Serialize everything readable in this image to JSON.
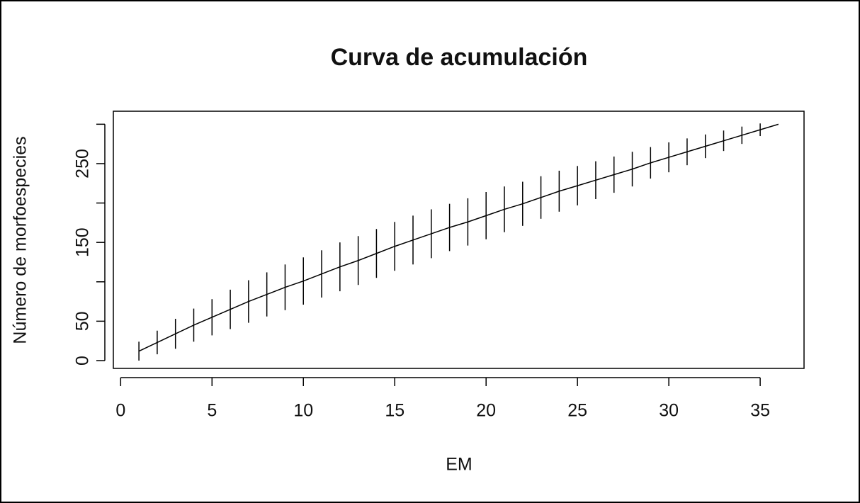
{
  "chart_data": {
    "type": "line",
    "title": "Curva de acumulación",
    "xlabel": "EM",
    "ylabel": "Número de morfoespecies",
    "x": [
      1,
      2,
      3,
      4,
      5,
      6,
      7,
      8,
      9,
      10,
      11,
      12,
      13,
      14,
      15,
      16,
      17,
      18,
      19,
      20,
      21,
      22,
      23,
      24,
      25,
      26,
      27,
      28,
      29,
      30,
      31,
      32,
      33,
      34,
      35,
      36
    ],
    "values": [
      12,
      23,
      34,
      45,
      55,
      65,
      75,
      84,
      93,
      101,
      110,
      119,
      127,
      136,
      145,
      153,
      161,
      169,
      176,
      184,
      192,
      199,
      207,
      215,
      222,
      229,
      236,
      243,
      251,
      258,
      265,
      272,
      279,
      286,
      293,
      300
    ],
    "errors": [
      12,
      15,
      19,
      21,
      23,
      25,
      27,
      28,
      29,
      30,
      30,
      31,
      31,
      31,
      31,
      31,
      31,
      30,
      30,
      30,
      29,
      28,
      27,
      26,
      25,
      24,
      23,
      22,
      20,
      19,
      17,
      15,
      13,
      11,
      8,
      0
    ],
    "color": "#000000",
    "xlim": [
      -0.4,
      37.4
    ],
    "xticks": [
      0,
      5,
      10,
      15,
      20,
      25,
      30,
      35
    ],
    "ylim": [
      -9.9,
      316.5
    ],
    "yticks": [
      0,
      50,
      150,
      250
    ],
    "yminor_ticks": [
      100,
      200,
      300
    ]
  }
}
